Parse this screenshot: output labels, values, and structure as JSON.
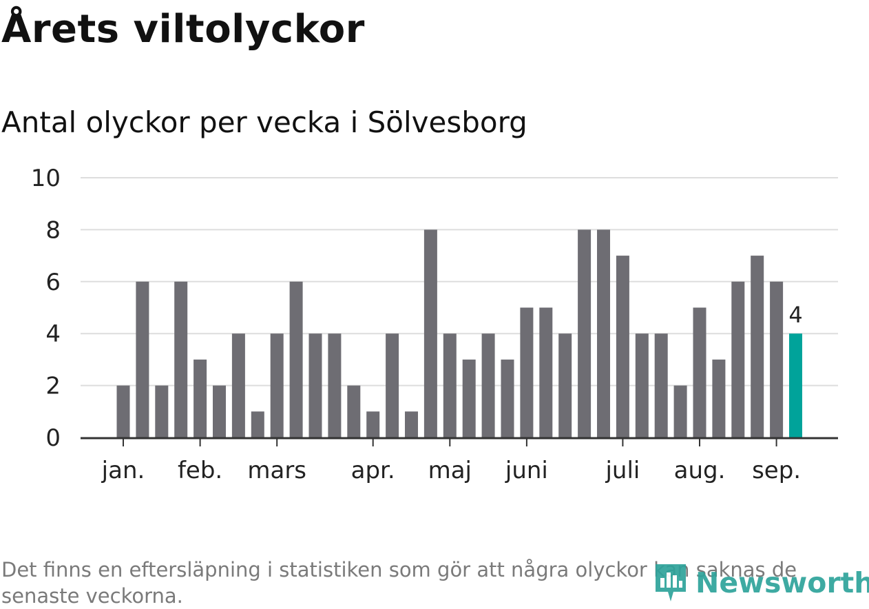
{
  "title": "Årets viltolyckor",
  "subtitle": "Antal olyckor per vecka i Sölvesborg",
  "footnote": "Det finns en eftersläpning i statistiken som gör att några olyckor kan saknas de senaste veckorna.",
  "logo": {
    "text": "Newsworthy",
    "icon": "newsworthy-logo-icon"
  },
  "colors": {
    "bar": "#6e6d73",
    "highlight": "#00a39a",
    "grid": "#dddddd",
    "axis": "#333333",
    "text": "#222222"
  },
  "chart_data": {
    "type": "bar",
    "xlabel": "",
    "ylabel": "",
    "ylim": [
      0,
      10
    ],
    "yticks": [
      0,
      2,
      4,
      6,
      8,
      10
    ],
    "grid": true,
    "week_values": [
      2,
      6,
      2,
      6,
      3,
      2,
      4,
      1,
      4,
      6,
      4,
      4,
      2,
      1,
      4,
      1,
      8,
      4,
      3,
      4,
      3,
      5,
      5,
      4,
      8,
      8,
      7,
      4,
      4,
      2,
      5,
      3,
      6,
      7,
      6,
      4
    ],
    "highlight_index": 35,
    "highlight_label": "4",
    "month_labels": [
      {
        "label": "jan.",
        "week": 0
      },
      {
        "label": "feb.",
        "week": 4
      },
      {
        "label": "mars",
        "week": 8
      },
      {
        "label": "apr.",
        "week": 13
      },
      {
        "label": "maj",
        "week": 17
      },
      {
        "label": "juni",
        "week": 21
      },
      {
        "label": "juli",
        "week": 26
      },
      {
        "label": "aug.",
        "week": 30
      },
      {
        "label": "sep.",
        "week": 34
      }
    ]
  }
}
